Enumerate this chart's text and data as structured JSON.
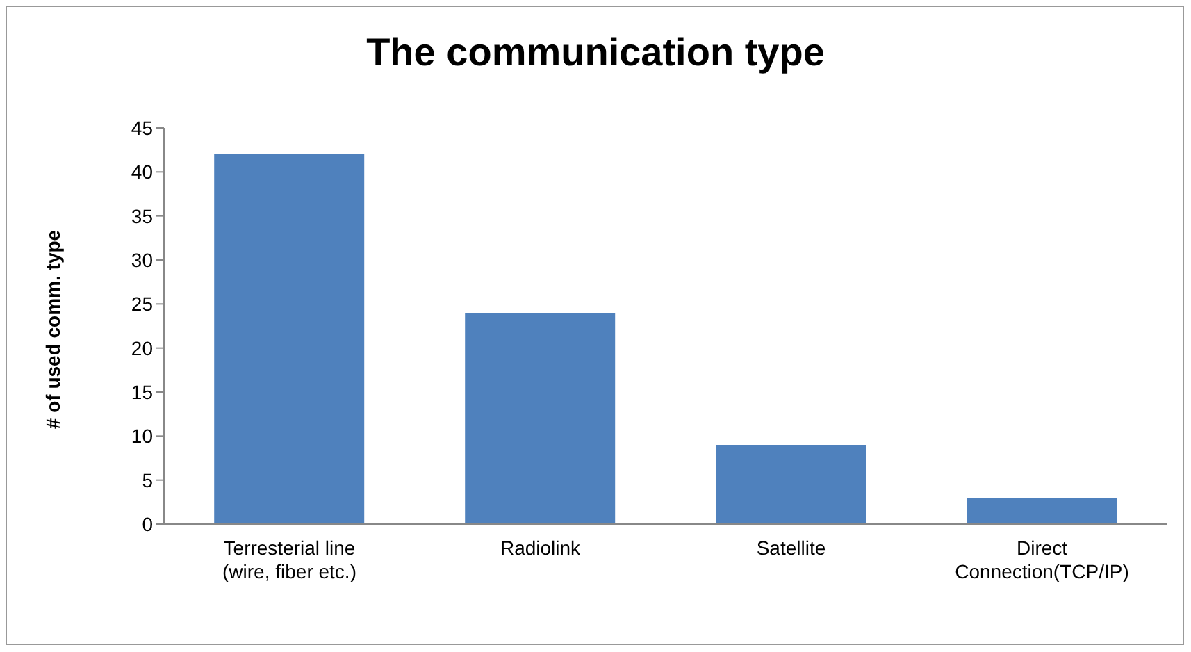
{
  "chart_data": {
    "type": "bar",
    "title": "The communication type",
    "ylabel": "# of used comm. type",
    "categories": [
      "Terresterial line\n(wire, fiber etc.)",
      "Radiolink",
      "Satellite",
      "Direct\nConnection(TCP/IP)"
    ],
    "values": [
      42,
      24,
      9,
      3
    ],
    "color": "#4f81bd",
    "ylim": [
      0,
      45
    ],
    "yticks": [
      0,
      5,
      10,
      15,
      20,
      25,
      30,
      35,
      40,
      45
    ],
    "grid": false,
    "legend": false
  }
}
